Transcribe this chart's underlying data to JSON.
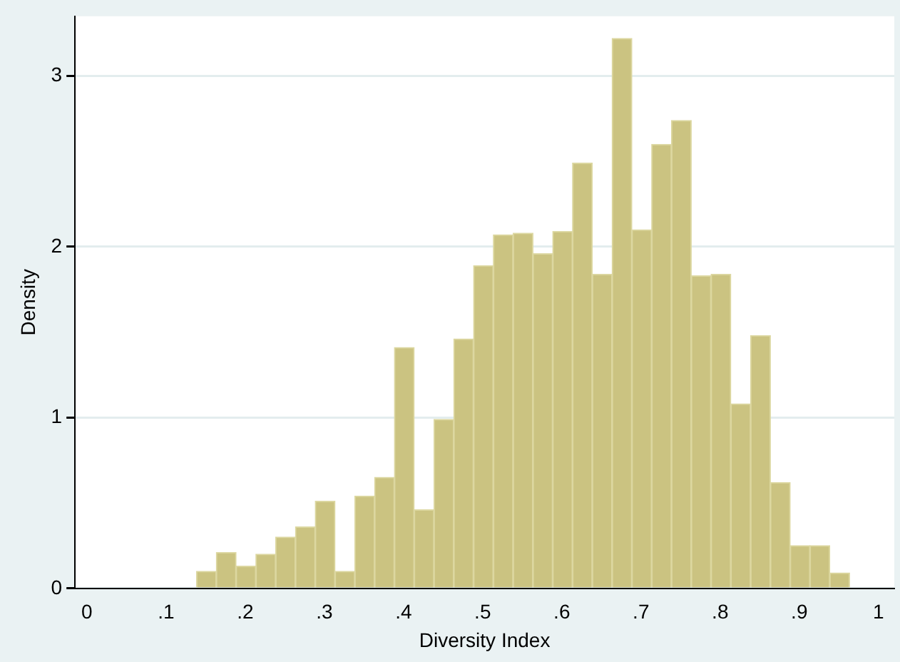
{
  "chart_data": {
    "type": "histogram",
    "xlabel": "Diversity Index",
    "ylabel": "Density",
    "bins": [
      0.1385,
      0.1635,
      0.1885,
      0.2135,
      0.2385,
      0.2635,
      0.2885,
      0.3135,
      0.3385,
      0.3635,
      0.3885,
      0.4135,
      0.4385,
      0.4635,
      0.4885,
      0.5135,
      0.5385,
      0.5635,
      0.5885,
      0.6135,
      0.6385,
      0.6635,
      0.6885,
      0.7135,
      0.7385,
      0.7635,
      0.7885,
      0.8135,
      0.8385,
      0.8635,
      0.8885,
      0.9135,
      0.9385,
      0.9635
    ],
    "values": [
      0.1,
      0.21,
      0.13,
      0.2,
      0.3,
      0.36,
      0.51,
      0.1,
      0.54,
      0.65,
      1.41,
      0.46,
      0.99,
      1.46,
      1.89,
      2.07,
      2.08,
      1.96,
      2.09,
      2.49,
      1.84,
      3.22,
      2.1,
      2.6,
      2.74,
      1.83,
      1.84,
      1.08,
      1.48,
      0.62,
      0.25,
      0.25,
      0.09
    ],
    "color": "#cbc381",
    "xlim": [
      -0.015,
      1.02
    ],
    "xticks": [
      0,
      {
        "value": 0.1,
        "label": ".1"
      },
      {
        "value": 0.2,
        "label": ".2"
      },
      {
        "value": 0.3,
        "label": ".3"
      },
      {
        "value": 0.4,
        "label": ".4"
      },
      {
        "value": 0.5,
        "label": ".5"
      },
      {
        "value": 0.6,
        "label": ".6"
      },
      {
        "value": 0.7,
        "label": ".7"
      },
      {
        "value": 0.8,
        "label": ".8"
      },
      {
        "value": 0.9,
        "label": ".9"
      },
      1
    ],
    "ylim": [
      0,
      3.35
    ],
    "yticks": [
      0,
      1,
      2,
      3
    ],
    "grid": "y",
    "legend": false
  }
}
